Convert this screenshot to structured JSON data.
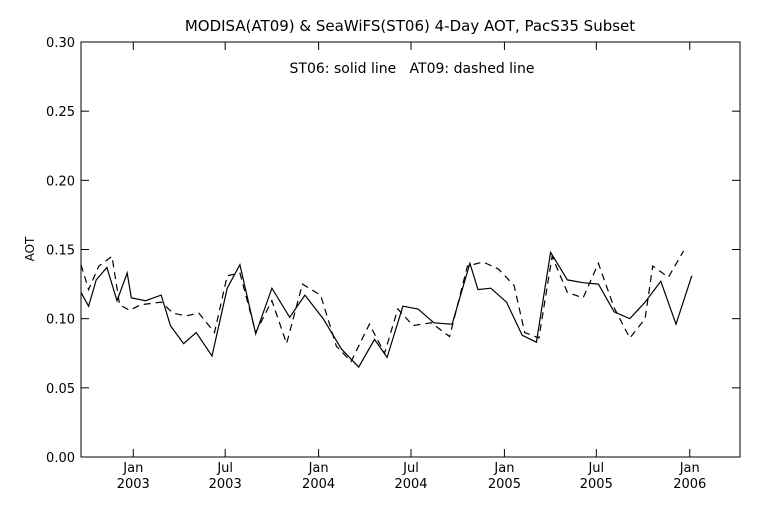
{
  "chart_data": {
    "type": "line",
    "title": "MODISA(AT09) & SeaWiFS(ST06) 4-Day AOT, PacS35 Subset",
    "annotation": "ST06: solid line   AT09: dashed line",
    "xlabel": "",
    "ylabel": "AOT",
    "xlim": [
      "2002-09-20",
      "2006-04-10"
    ],
    "ylim": [
      0.0,
      0.3
    ],
    "y_ticks": [
      "0.00",
      "0.05",
      "0.10",
      "0.15",
      "0.20",
      "0.25",
      "0.30"
    ],
    "x_ticks": [
      {
        "date": "2003-01-01",
        "month": "Jan",
        "year": "2003"
      },
      {
        "date": "2003-07-01",
        "month": "Jul",
        "year": "2003"
      },
      {
        "date": "2004-01-01",
        "month": "Jan",
        "year": "2004"
      },
      {
        "date": "2004-07-01",
        "month": "Jul",
        "year": "2004"
      },
      {
        "date": "2005-01-01",
        "month": "Jan",
        "year": "2005"
      },
      {
        "date": "2005-07-01",
        "month": "Jul",
        "year": "2005"
      },
      {
        "date": "2006-01-01",
        "month": "Jan",
        "year": "2006"
      }
    ],
    "grid": false,
    "series": [
      {
        "name": "ST06",
        "style": "solid",
        "color": "#000000",
        "points": [
          [
            "2002-09-20",
            0.119
          ],
          [
            "2002-10-05",
            0.109
          ],
          [
            "2002-10-20",
            0.128
          ],
          [
            "2002-11-10",
            0.137
          ],
          [
            "2002-11-30",
            0.113
          ],
          [
            "2002-12-20",
            0.133
          ],
          [
            "2002-12-28",
            0.115
          ],
          [
            "2003-01-25",
            0.113
          ],
          [
            "2003-02-25",
            0.117
          ],
          [
            "2003-03-15",
            0.095
          ],
          [
            "2003-04-10",
            0.082
          ],
          [
            "2003-05-05",
            0.09
          ],
          [
            "2003-06-05",
            0.073
          ],
          [
            "2003-07-05",
            0.122
          ],
          [
            "2003-07-30",
            0.139
          ],
          [
            "2003-08-30",
            0.089
          ],
          [
            "2003-10-01",
            0.122
          ],
          [
            "2003-11-05",
            0.101
          ],
          [
            "2003-12-05",
            0.117
          ],
          [
            "2004-01-10",
            0.1
          ],
          [
            "2004-02-15",
            0.078
          ],
          [
            "2004-03-20",
            0.065
          ],
          [
            "2004-04-20",
            0.085
          ],
          [
            "2004-05-15",
            0.072
          ],
          [
            "2004-06-15",
            0.109
          ],
          [
            "2004-07-15",
            0.107
          ],
          [
            "2004-08-15",
            0.097
          ],
          [
            "2004-09-20",
            0.096
          ],
          [
            "2004-10-25",
            0.14
          ],
          [
            "2004-11-10",
            0.121
          ],
          [
            "2004-12-05",
            0.122
          ],
          [
            "2005-01-05",
            0.112
          ],
          [
            "2005-02-05",
            0.088
          ],
          [
            "2005-03-05",
            0.083
          ],
          [
            "2005-04-02",
            0.148
          ],
          [
            "2005-05-05",
            0.128
          ],
          [
            "2005-06-05",
            0.126
          ],
          [
            "2005-07-05",
            0.125
          ],
          [
            "2005-08-05",
            0.105
          ],
          [
            "2005-09-05",
            0.1
          ],
          [
            "2005-10-05",
            0.112
          ],
          [
            "2005-11-05",
            0.127
          ],
          [
            "2005-12-05",
            0.096
          ],
          [
            "2006-01-05",
            0.131
          ]
        ]
      },
      {
        "name": "AT09",
        "style": "dashed",
        "color": "#000000",
        "points": [
          [
            "2002-09-20",
            0.139
          ],
          [
            "2002-10-05",
            0.121
          ],
          [
            "2002-10-25",
            0.138
          ],
          [
            "2002-11-20",
            0.145
          ],
          [
            "2002-12-05",
            0.11
          ],
          [
            "2002-12-25",
            0.106
          ],
          [
            "2003-01-15",
            0.11
          ],
          [
            "2003-02-25",
            0.112
          ],
          [
            "2003-03-20",
            0.104
          ],
          [
            "2003-04-15",
            0.102
          ],
          [
            "2003-05-10",
            0.104
          ],
          [
            "2003-06-10",
            0.09
          ],
          [
            "2003-07-05",
            0.131
          ],
          [
            "2003-07-30",
            0.133
          ],
          [
            "2003-08-30",
            0.09
          ],
          [
            "2003-10-01",
            0.113
          ],
          [
            "2003-10-30",
            0.082
          ],
          [
            "2003-11-30",
            0.125
          ],
          [
            "2004-01-05",
            0.117
          ],
          [
            "2004-02-05",
            0.08
          ],
          [
            "2004-03-05",
            0.069
          ],
          [
            "2004-04-10",
            0.096
          ],
          [
            "2004-05-10",
            0.075
          ],
          [
            "2004-06-05",
            0.107
          ],
          [
            "2004-07-05",
            0.095
          ],
          [
            "2004-08-10",
            0.097
          ],
          [
            "2004-09-15",
            0.087
          ],
          [
            "2004-10-20",
            0.138
          ],
          [
            "2004-11-20",
            0.141
          ],
          [
            "2004-12-20",
            0.136
          ],
          [
            "2005-01-20",
            0.124
          ],
          [
            "2005-02-10",
            0.09
          ],
          [
            "2005-03-10",
            0.086
          ],
          [
            "2005-04-05",
            0.145
          ],
          [
            "2005-05-05",
            0.119
          ],
          [
            "2005-06-05",
            0.115
          ],
          [
            "2005-07-05",
            0.14
          ],
          [
            "2005-08-05",
            0.108
          ],
          [
            "2005-09-05",
            0.086
          ],
          [
            "2005-10-05",
            0.1
          ],
          [
            "2005-10-20",
            0.138
          ],
          [
            "2005-11-20",
            0.13
          ],
          [
            "2005-12-20",
            0.149
          ]
        ]
      }
    ]
  }
}
